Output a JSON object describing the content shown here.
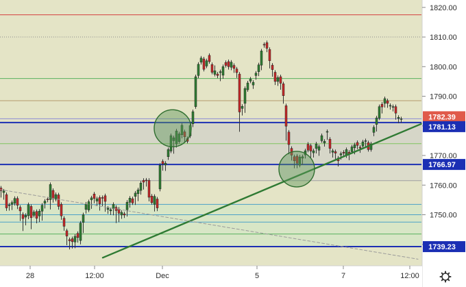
{
  "chart_data": {
    "type": "candlestick",
    "ylim": [
      1733,
      1822.5
    ],
    "x_ticks": [
      "28",
      "12:00",
      "Dec",
      "5",
      "7",
      "12:00"
    ],
    "y_ticks": [
      "1820.00",
      "1810.00",
      "1800.00",
      "1790.00",
      "1780.00",
      "1770.00",
      "1760.00",
      "1750.00",
      "1740.00"
    ],
    "last_price": "1782.39",
    "price_labels": [
      {
        "text": "1782.39",
        "value": 1782.39,
        "color": "#e05a4a"
      },
      {
        "text": "1781.13",
        "value": 1781.13,
        "color": "#1b2fb4"
      },
      {
        "text": "1766.97",
        "value": 1766.97,
        "color": "#1b2fb4"
      },
      {
        "text": "1739.23",
        "value": 1739.23,
        "color": "#1b2fb4"
      }
    ],
    "horizontal_lines": [
      {
        "value": 1817.5,
        "color": "#d33f3f",
        "style": "solid",
        "width": 1
      },
      {
        "value": 1810.0,
        "color": "#8a8a8a",
        "style": "dotted",
        "width": 1
      },
      {
        "value": 1796.0,
        "color": "#58b15e",
        "style": "solid",
        "width": 1
      },
      {
        "value": 1788.5,
        "color": "#b59a6c",
        "style": "solid",
        "width": 1
      },
      {
        "value": 1782.39,
        "color": "#8b8bd6",
        "style": "solid",
        "width": 1
      },
      {
        "value": 1781.13,
        "color": "#1b2fb4",
        "style": "solid",
        "width": 2
      },
      {
        "value": 1774.0,
        "color": "#7fc45e",
        "style": "solid",
        "width": 1
      },
      {
        "value": 1766.97,
        "color": "#1b2fb4",
        "style": "solid",
        "width": 2
      },
      {
        "value": 1761.5,
        "color": "#a0a0a0",
        "style": "solid",
        "width": 1
      },
      {
        "value": 1753.5,
        "color": "#4aa0c8",
        "style": "solid",
        "width": 1
      },
      {
        "value": 1750.0,
        "color": "#4aa0c8",
        "style": "solid",
        "width": 1
      },
      {
        "value": 1747.5,
        "color": "#4aa0c8",
        "style": "solid",
        "width": 1
      },
      {
        "value": 1743.5,
        "color": "#58b15e",
        "style": "solid",
        "width": 1
      },
      {
        "value": 1739.23,
        "color": "#1b2fb4",
        "style": "solid",
        "width": 2
      }
    ],
    "trendlines": [
      {
        "from": [
          150,
          1735.5
        ],
        "to": [
          616,
          1780.8
        ],
        "color": "#2f7a33",
        "style": "solid",
        "width": 2.4
      },
      {
        "from": [
          0,
          1758.5
        ],
        "to": [
          610,
          1735.0
        ],
        "color": "#9a9a9a",
        "style": "dashed",
        "width": 1
      }
    ],
    "circles": [
      {
        "cx": 252,
        "cy_value": 1779.2,
        "r": 27
      },
      {
        "cx": 433,
        "cy_value": 1765.4,
        "r": 26
      }
    ],
    "candles": [
      [
        0,
        1759.0,
        1758.1,
        1756.5
      ],
      [
        4,
        1757.5,
        1758.0,
        1755.8
      ],
      [
        8,
        1756.8,
        1752.3,
        1752.0
      ],
      [
        12,
        1753.1,
        1753.3,
        1752.1
      ],
      [
        16,
        1753.5,
        1754.1,
        1752.3
      ],
      [
        20,
        1753.9,
        1755.5,
        1753.8
      ],
      [
        24,
        1755.5,
        1753.2,
        1752.6
      ],
      [
        28,
        1752.5,
        1751.3,
        1748.6
      ],
      [
        32,
        1750.1,
        1748.7,
        1745.2
      ],
      [
        36,
        1749.2,
        1749.8,
        1747.1
      ],
      [
        40,
        1749.7,
        1753.4,
        1749.2
      ],
      [
        44,
        1752.8,
        1749.0,
        1745.8
      ],
      [
        48,
        1749.8,
        1750.9,
        1749.8
      ],
      [
        52,
        1751.1,
        1748.8,
        1747.8
      ],
      [
        56,
        1749.6,
        1751.2,
        1748.2
      ],
      [
        60,
        1751.2,
        1753.2,
        1748.7
      ],
      [
        64,
        1753.9,
        1754.6,
        1752.8
      ],
      [
        68,
        1755.3,
        1755.2,
        1754.9
      ],
      [
        72,
        1755.1,
        1760.2,
        1752.5
      ],
      [
        76,
        1758.2,
        1755.4,
        1754.8
      ],
      [
        80,
        1755.2,
        1756.8,
        1755.9
      ],
      [
        84,
        1756.7,
        1752.8,
        1752.4
      ],
      [
        88,
        1753.5,
        1749.6,
        1749.0
      ],
      [
        92,
        1748.8,
        1746.1,
        1745.3
      ],
      [
        96,
        1744.6,
        1742.8,
        1740.4
      ],
      [
        100,
        1741.6,
        1741.2,
        1739.0
      ],
      [
        104,
        1741.9,
        1740.9,
        1739.3
      ],
      [
        108,
        1740.8,
        1742.7,
        1739.4
      ],
      [
        112,
        1743.7,
        1742.3,
        1741.3
      ],
      [
        116,
        1741.3,
        1747.2,
        1740.7
      ],
      [
        120,
        1747.4,
        1750.0,
        1744.5
      ],
      [
        124,
        1751.8,
        1753.6,
        1751.1
      ],
      [
        128,
        1751.6,
        1754.4,
        1752.8
      ],
      [
        132,
        1755.0,
        1755.7,
        1752.7
      ],
      [
        136,
        1757.0,
        1755.5,
        1754.6
      ],
      [
        140,
        1754.6,
        1755.4,
        1753.6
      ],
      [
        144,
        1755.8,
        1753.7,
        1752.1
      ],
      [
        148,
        1755.8,
        1755.6,
        1753.6
      ],
      [
        152,
        1756.4,
        1754.5,
        1751.7
      ],
      [
        156,
        1751.8,
        1752.2,
        1751.0
      ],
      [
        160,
        1751.3,
        1751.7,
        1750.6
      ],
      [
        164,
        1752.1,
        1753.5,
        1750.5
      ],
      [
        168,
        1752.5,
        1751.4,
        1747.9
      ],
      [
        172,
        1751.9,
        1750.5,
        1748.2
      ],
      [
        176,
        1749.9,
        1750.8,
        1749.3
      ],
      [
        180,
        1750.3,
        1749.9,
        1749.6
      ],
      [
        184,
        1751.7,
        1754.2,
        1750.1
      ],
      [
        188,
        1754.2,
        1755.6,
        1753.1
      ],
      [
        192,
        1755.4,
        1754.0,
        1754.2
      ],
      [
        196,
        1756.2,
        1757.3,
        1754.0
      ],
      [
        200,
        1757.1,
        1758.4,
        1755.3
      ],
      [
        204,
        1758.2,
        1760.7,
        1757.5
      ],
      [
        208,
        1761.6,
        1761.0,
        1759.2
      ],
      [
        212,
        1761.7,
        1761.6,
        1760.2
      ],
      [
        216,
        1761.6,
        1755.9,
        1755.2
      ],
      [
        220,
        1756.3,
        1754.1,
        1754.3
      ],
      [
        224,
        1753.5,
        1756.2,
        1751.8
      ],
      [
        228,
        1755.3,
        1752.3,
        1751.9
      ],
      [
        232,
        1758.7,
        1766.7,
        1758.6
      ],
      [
        236,
        1768.0,
        1767.2,
        1765.6
      ],
      [
        240,
        1766.8,
        1767.4,
        1765.5
      ],
      [
        244,
        1769.6,
        1772.0,
        1769.2
      ],
      [
        248,
        1771.5,
        1776.7,
        1772.2
      ],
      [
        252,
        1775.0,
        1776.0,
        1771.3
      ],
      [
        256,
        1773.9,
        1778.3,
        1773.4
      ],
      [
        260,
        1774.7,
        1777.3,
        1774.7
      ],
      [
        264,
        1777.0,
        1780.2,
        1776.5
      ],
      [
        268,
        1778.0,
        1776.3,
        1775.3
      ],
      [
        272,
        1775.7,
        1774.8,
        1774.9
      ],
      [
        276,
        1776.6,
        1780.1,
        1778.8
      ],
      [
        280,
        1780.7,
        1784.8,
        1780.3
      ],
      [
        284,
        1786.5,
        1796.6,
        1787.0
      ],
      [
        288,
        1797.0,
        1800.8,
        1796.8
      ],
      [
        292,
        1801.5,
        1802.9,
        1801.4
      ],
      [
        296,
        1802.6,
        1799.1,
        1799.8
      ],
      [
        300,
        1800.2,
        1802.0,
        1800.5
      ],
      [
        304,
        1803.8,
        1801.7,
        1803.0
      ],
      [
        308,
        1800.7,
        1798.1,
        1798.4
      ],
      [
        312,
        1797.4,
        1798.6,
        1799.7
      ],
      [
        316,
        1797.5,
        1797.0,
        1796.8
      ],
      [
        320,
        1798.0,
        1798.3,
        1795.8
      ],
      [
        324,
        1797.1,
        1800.0,
        1796.6
      ],
      [
        328,
        1801.4,
        1800.4,
        1800.4
      ],
      [
        332,
        1801.7,
        1800.0,
        1799.7
      ],
      [
        336,
        1799.8,
        1801.5,
        1799.5
      ],
      [
        340,
        1800.4,
        1799.4,
        1798.6
      ],
      [
        344,
        1799.2,
        1798.0,
        1796.9
      ],
      [
        348,
        1797.5,
        1784.7,
        1778.7
      ],
      [
        352,
        1785.9,
        1786.6,
        1784.2
      ],
      [
        356,
        1787.6,
        1792.6,
        1785.1
      ],
      [
        360,
        1792.2,
        1794.5,
        1793.3
      ],
      [
        364,
        1795.1,
        1795.8,
        1795.4
      ],
      [
        368,
        1793.8,
        1794.7,
        1793.2
      ],
      [
        372,
        1797.0,
        1797.8,
        1796.3
      ],
      [
        376,
        1798.3,
        1800.6,
        1797.5
      ],
      [
        380,
        1800.5,
        1805.3,
        1799.5
      ],
      [
        384,
        1807.5,
        1807.3,
        1807.1
      ],
      [
        388,
        1808.1,
        1806.2,
        1805.6
      ],
      [
        392,
        1805.8,
        1802.0,
        1800.1
      ],
      [
        396,
        1800.5,
        1799.0,
        1797.3
      ],
      [
        400,
        1798.1,
        1795.0,
        1794.5
      ],
      [
        404,
        1795.0,
        1796.3,
        1794.2
      ],
      [
        408,
        1796.6,
        1794.4,
        1792.9
      ],
      [
        412,
        1794.2,
        1790.2,
        1788.2
      ],
      [
        416,
        1786.8,
        1779.9,
        1775.7
      ],
      [
        420,
        1777.9,
        1773.7,
        1771.1
      ],
      [
        424,
        1772.4,
        1770.1,
        1769.0
      ],
      [
        428,
        1769.6,
        1768.2,
        1766.4
      ],
      [
        432,
        1769.8,
        1767.4,
        1766.4
      ],
      [
        436,
        1766.7,
        1769.5,
        1767.0
      ],
      [
        440,
        1769.1,
        1769.6,
        1767.5
      ],
      [
        444,
        1770.2,
        1771.6,
        1769.7
      ],
      [
        448,
        1773.8,
        1771.8,
        1772.6
      ],
      [
        452,
        1773.3,
        1771.5,
        1770.0
      ],
      [
        456,
        1770.9,
        1771.6,
        1770.0
      ],
      [
        460,
        1772.4,
        1773.9,
        1771.4
      ],
      [
        464,
        1771.8,
        1773.0,
        1770.6
      ],
      [
        468,
        1775.0,
        1776.7,
        1775.1
      ],
      [
        472,
        1774.2,
        1774.8,
        1773.7
      ],
      [
        476,
        1777.9,
        1778.1,
        1776.0
      ],
      [
        480,
        1775.5,
        1772.4,
        1771.4
      ],
      [
        484,
        1771.1,
        1771.6,
        1770.0
      ],
      [
        488,
        1771.3,
        1770.8,
        1769.0
      ],
      [
        492,
        1769.1,
        1768.2,
        1767.0
      ],
      [
        496,
        1770.2,
        1770.6,
        1769.3
      ],
      [
        500,
        1771.1,
        1770.8,
        1770.4
      ],
      [
        504,
        1770.3,
        1772.0,
        1769.9
      ],
      [
        508,
        1771.1,
        1770.4,
        1769.1
      ],
      [
        512,
        1771.3,
        1772.9,
        1771.3
      ],
      [
        516,
        1772.6,
        1773.6,
        1771.1
      ],
      [
        520,
        1774.4,
        1773.4,
        1772.8
      ],
      [
        524,
        1772.8,
        1772.5,
        1771.6
      ],
      [
        528,
        1773.2,
        1774.6,
        1773.5
      ],
      [
        532,
        1774.8,
        1775.0,
        1773.3
      ],
      [
        536,
        1774.3,
        1772.0,
        1772.0
      ],
      [
        540,
        1772.0,
        1773.9,
        1772.0
      ],
      [
        544,
        1777.8,
        1779.5,
        1777.2
      ],
      [
        548,
        1780.5,
        1782.7,
        1778.8
      ],
      [
        552,
        1782.6,
        1786.5,
        1782.7
      ],
      [
        556,
        1787.3,
        1786.4,
        1784.9
      ],
      [
        560,
        1787.6,
        1789.2,
        1786.9
      ],
      [
        564,
        1788.5,
        1787.6,
        1786.8
      ],
      [
        568,
        1786.7,
        1786.9,
        1786.2
      ],
      [
        572,
        1786.3,
        1786.5,
        1785.6
      ],
      [
        576,
        1786.5,
        1784.3,
        1782.8
      ],
      [
        580,
        1782.5,
        1782.9,
        1781.6
      ],
      [
        584,
        1782.3,
        1782.4,
        1781.7
      ]
    ]
  }
}
